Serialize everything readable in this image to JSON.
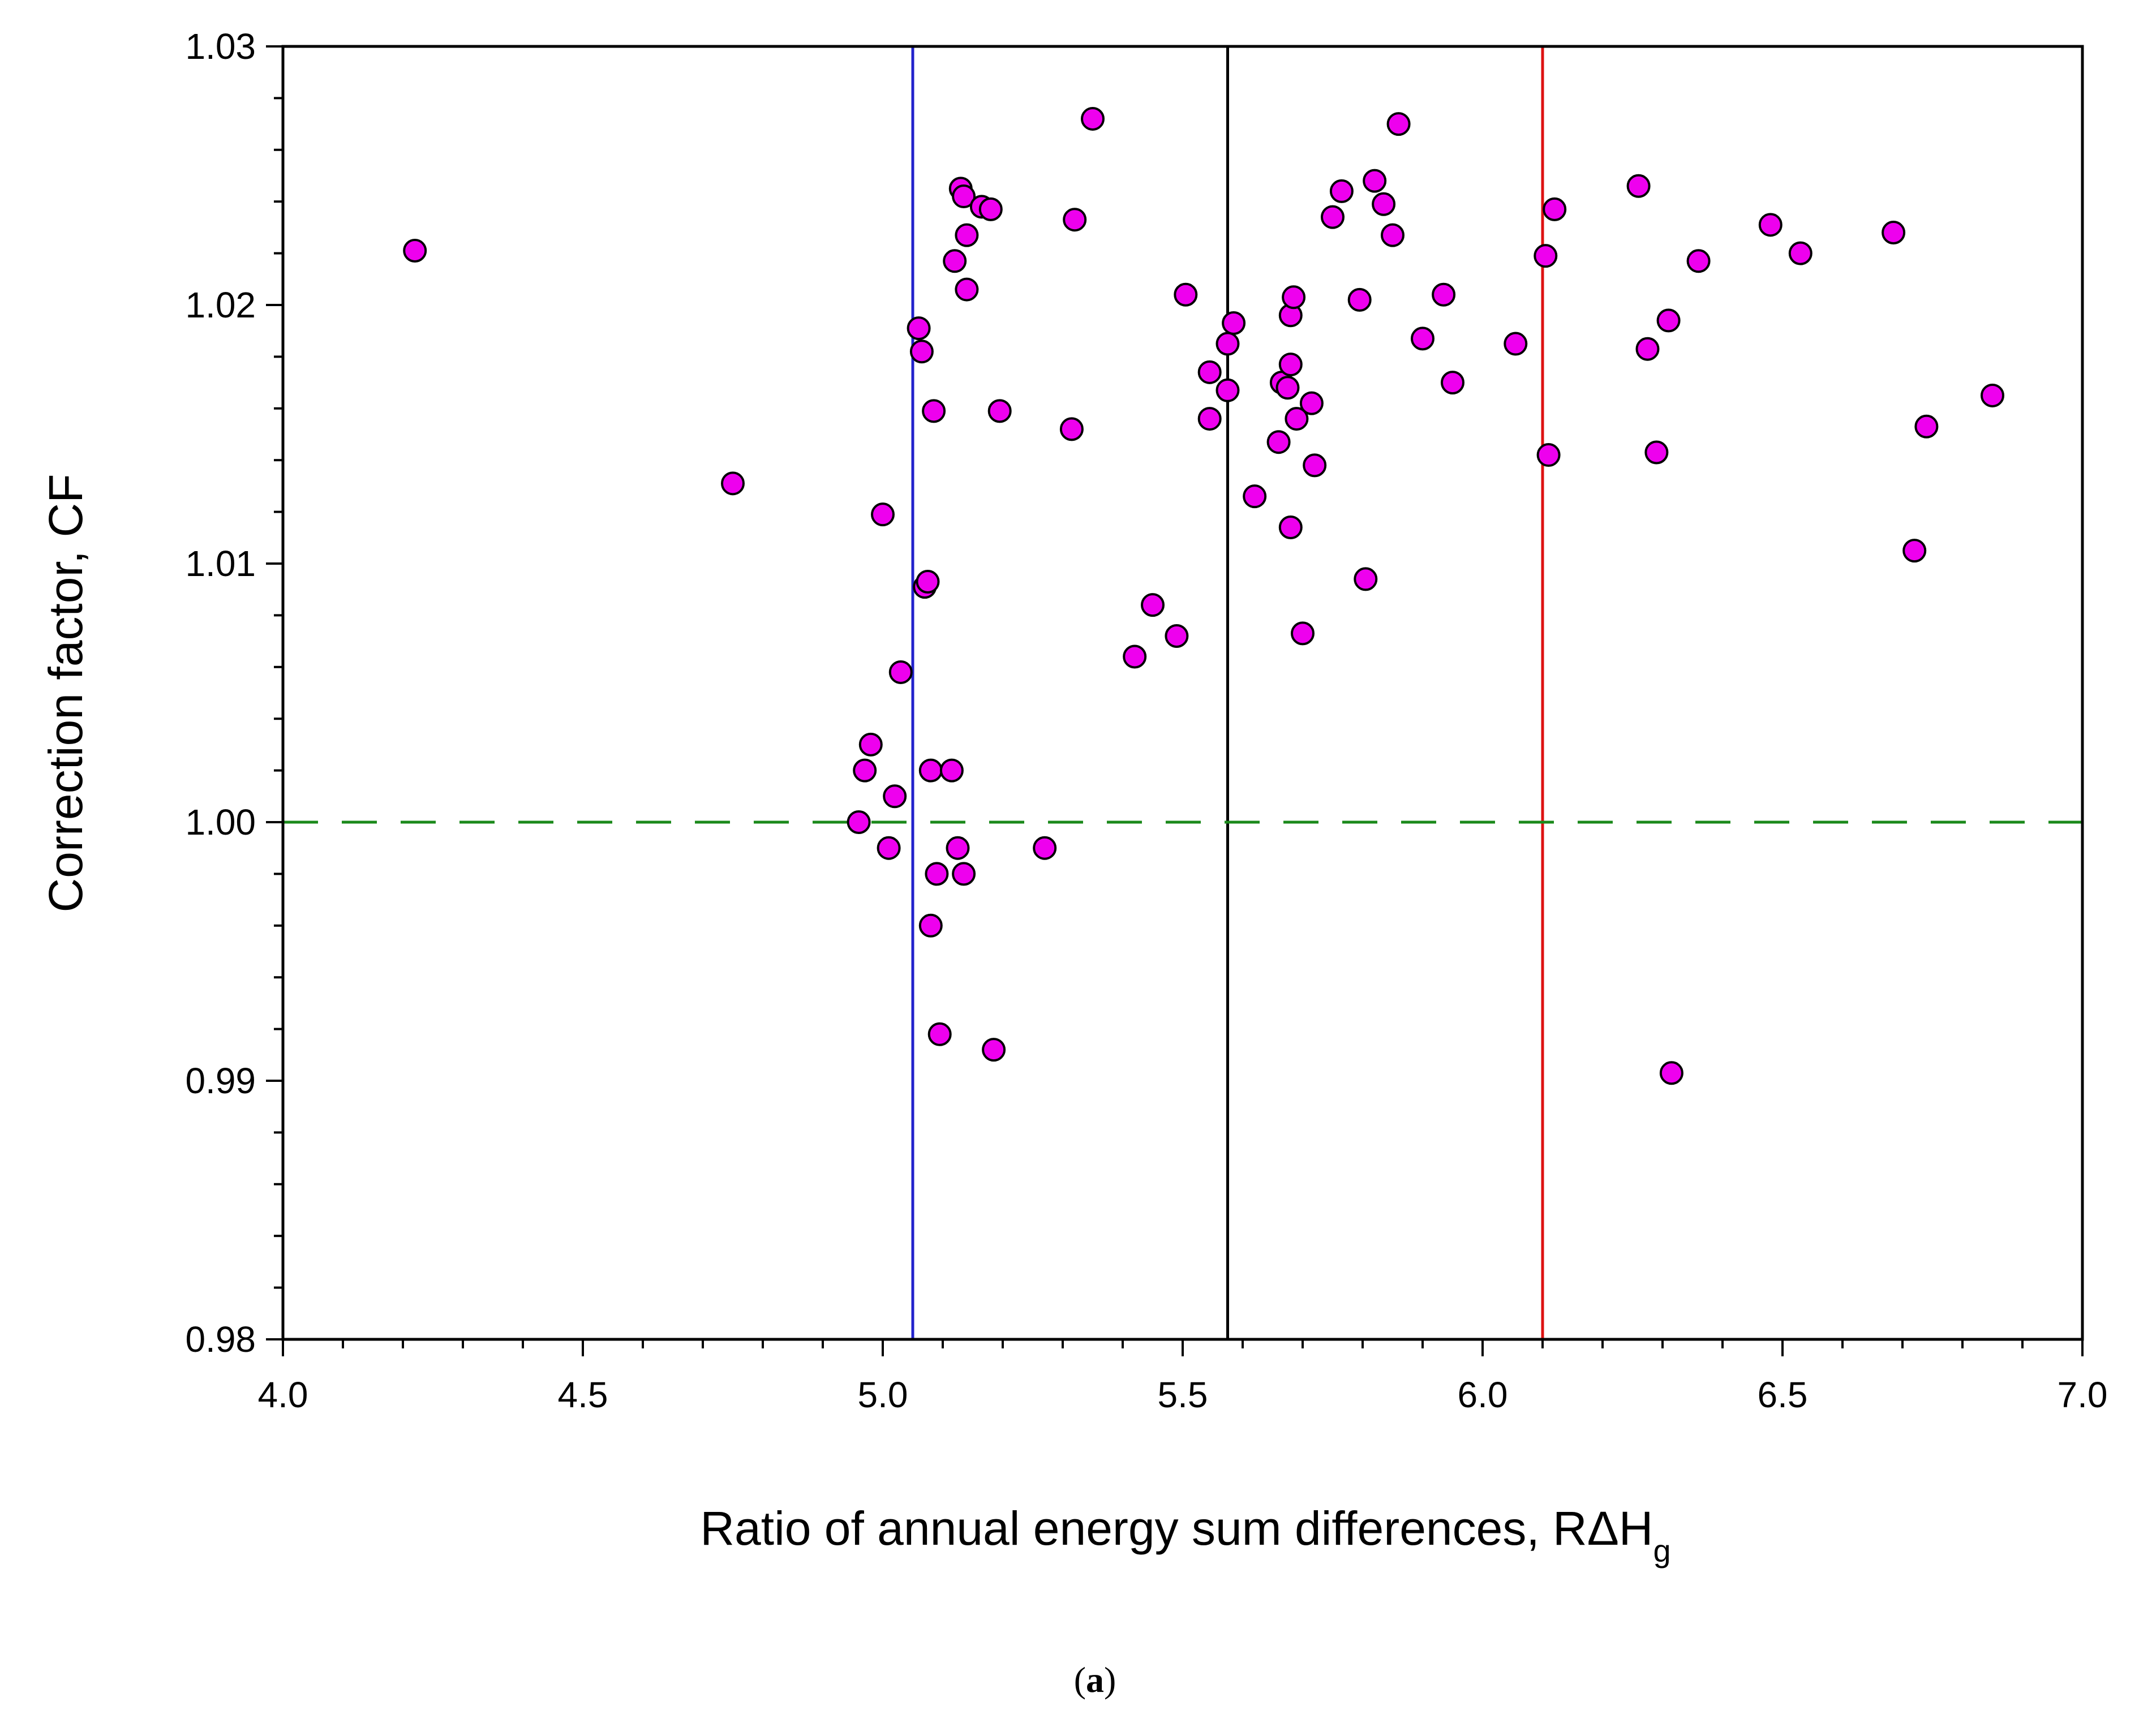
{
  "chart_data": {
    "type": "scatter",
    "title": "",
    "xlabel": "Ratio of annual energy sum differences, RΔHg",
    "xlabel_main": "Ratio of annual energy sum differences, RΔH",
    "xlabel_sub": "g",
    "ylabel": "Correction factor, CF",
    "xlim": [
      4.0,
      7.0
    ],
    "ylim": [
      0.98,
      1.03
    ],
    "x_ticks": [
      "4.0",
      "4.5",
      "5.0",
      "5.5",
      "6.0",
      "6.5",
      "7.0"
    ],
    "y_ticks": [
      "0.98",
      "0.99",
      "1.00",
      "1.01",
      "1.02",
      "1.03"
    ],
    "grid": false,
    "caption_open": "(",
    "caption_letter": "a",
    "caption_close": ")",
    "reference_lines": [
      {
        "orientation": "vertical",
        "value": 5.05,
        "color": "#2222cc",
        "style": "solid"
      },
      {
        "orientation": "vertical",
        "value": 5.575,
        "color": "#000000",
        "style": "solid"
      },
      {
        "orientation": "vertical",
        "value": 6.1,
        "color": "#dd1111",
        "style": "solid"
      },
      {
        "orientation": "horizontal",
        "value": 1.0,
        "color": "#1b8a1b",
        "style": "dashed"
      }
    ],
    "marker_color": "#ee00ee",
    "marker_edge_color": "#000000",
    "series": [
      {
        "name": "CF",
        "points": [
          [
            4.22,
            1.0221
          ],
          [
            4.75,
            1.0131
          ],
          [
            4.96,
            1.0
          ],
          [
            4.97,
            1.002
          ],
          [
            4.98,
            1.003
          ],
          [
            5.0,
            1.0119
          ],
          [
            5.01,
            0.999
          ],
          [
            5.02,
            1.001
          ],
          [
            5.03,
            1.0058
          ],
          [
            5.06,
            1.0191
          ],
          [
            5.065,
            1.0182
          ],
          [
            5.07,
            1.0091
          ],
          [
            5.075,
            1.0093
          ],
          [
            5.08,
            0.996
          ],
          [
            5.08,
            1.002
          ],
          [
            5.085,
            1.0159
          ],
          [
            5.09,
            0.998
          ],
          [
            5.095,
            0.9918
          ],
          [
            5.115,
            1.002
          ],
          [
            5.12,
            1.0217
          ],
          [
            5.125,
            0.999
          ],
          [
            5.13,
            1.0245
          ],
          [
            5.135,
            1.0242
          ],
          [
            5.135,
            0.998
          ],
          [
            5.14,
            1.0227
          ],
          [
            5.14,
            1.0206
          ],
          [
            5.165,
            1.0238
          ],
          [
            5.18,
            1.0237
          ],
          [
            5.185,
            0.9912
          ],
          [
            5.195,
            1.0159
          ],
          [
            5.27,
            0.999
          ],
          [
            5.315,
            1.0152
          ],
          [
            5.32,
            1.0233
          ],
          [
            5.35,
            1.0272
          ],
          [
            5.42,
            1.0064
          ],
          [
            5.45,
            1.0084
          ],
          [
            5.49,
            1.0072
          ],
          [
            5.505,
            1.0204
          ],
          [
            5.545,
            1.0174
          ],
          [
            5.545,
            1.0156
          ],
          [
            5.575,
            1.0185
          ],
          [
            5.575,
            1.0167
          ],
          [
            5.585,
            1.0193
          ],
          [
            5.62,
            1.0126
          ],
          [
            5.66,
            1.0147
          ],
          [
            5.665,
            1.017
          ],
          [
            5.675,
            1.0168
          ],
          [
            5.68,
            1.0196
          ],
          [
            5.68,
            1.0177
          ],
          [
            5.68,
            1.0114
          ],
          [
            5.685,
            1.0203
          ],
          [
            5.69,
            1.0156
          ],
          [
            5.7,
            1.0073
          ],
          [
            5.715,
            1.0162
          ],
          [
            5.72,
            1.0138
          ],
          [
            5.75,
            1.0234
          ],
          [
            5.765,
            1.0244
          ],
          [
            5.795,
            1.0202
          ],
          [
            5.805,
            1.0094
          ],
          [
            5.82,
            1.0248
          ],
          [
            5.835,
            1.0239
          ],
          [
            5.85,
            1.0227
          ],
          [
            5.86,
            1.027
          ],
          [
            5.9,
            1.0187
          ],
          [
            5.935,
            1.0204
          ],
          [
            5.95,
            1.017
          ],
          [
            6.055,
            1.0185
          ],
          [
            6.105,
            1.0219
          ],
          [
            6.11,
            1.0142
          ],
          [
            6.12,
            1.0237
          ],
          [
            6.26,
            1.0246
          ],
          [
            6.275,
            1.0183
          ],
          [
            6.29,
            1.0143
          ],
          [
            6.31,
            1.0194
          ],
          [
            6.315,
            0.9903
          ],
          [
            6.36,
            1.0217
          ],
          [
            6.48,
            1.0231
          ],
          [
            6.53,
            1.022
          ],
          [
            6.685,
            1.0228
          ],
          [
            6.72,
            1.0105
          ],
          [
            6.74,
            1.0153
          ],
          [
            6.85,
            1.0165
          ]
        ]
      }
    ]
  }
}
